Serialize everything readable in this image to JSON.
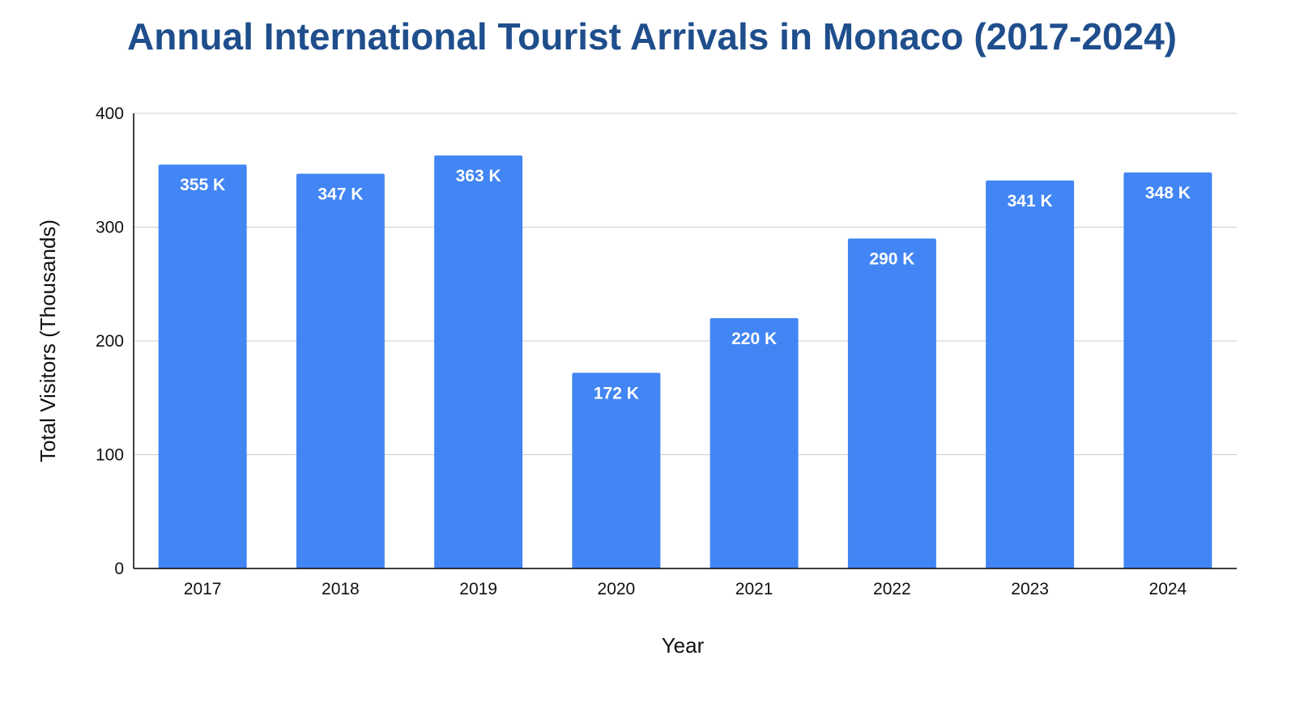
{
  "chart_data": {
    "type": "bar",
    "title": "Annual International Tourist Arrivals in Monaco (2017-2024)",
    "xlabel": "Year",
    "ylabel": "Total Visitors (Thousands)",
    "categories": [
      "2017",
      "2018",
      "2019",
      "2020",
      "2021",
      "2022",
      "2023",
      "2024"
    ],
    "values": [
      355,
      347,
      363,
      172,
      220,
      290,
      341,
      348
    ],
    "data_labels": [
      "355 K",
      "347 K",
      "363 K",
      "172 K",
      "220 K",
      "290 K",
      "341 K",
      "348 K"
    ],
    "ylim": [
      0,
      400
    ],
    "yticks": [
      0,
      100,
      200,
      300,
      400
    ],
    "grid": true,
    "legend": "none",
    "colors": {
      "bar": "#4285f4",
      "title": "#1f4e8c",
      "grid": "#cccccc",
      "axis": "#000000"
    }
  }
}
